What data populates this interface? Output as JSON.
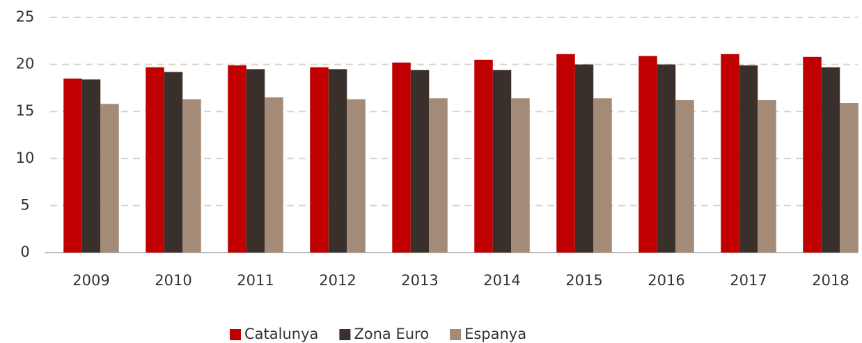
{
  "chart_data": {
    "type": "bar",
    "categories": [
      "2009",
      "2010",
      "2011",
      "2012",
      "2013",
      "2014",
      "2015",
      "2016",
      "2017",
      "2018"
    ],
    "series": [
      {
        "name": "Catalunya",
        "color": "#c00000",
        "values": [
          18.5,
          19.7,
          19.9,
          19.7,
          20.2,
          20.5,
          21.1,
          20.9,
          21.1,
          20.8
        ]
      },
      {
        "name": "Zona Euro",
        "color": "#3a302b",
        "values": [
          18.4,
          19.2,
          19.5,
          19.5,
          19.4,
          19.4,
          20.0,
          20.0,
          19.9,
          19.7
        ]
      },
      {
        "name": "Espanya",
        "color": "#a38b78",
        "values": [
          15.8,
          16.3,
          16.5,
          16.3,
          16.4,
          16.4,
          16.4,
          16.2,
          16.2,
          15.9
        ]
      }
    ],
    "ylim": [
      0,
      25
    ],
    "yticks": [
      0,
      5,
      10,
      15,
      20,
      25
    ],
    "grid": true,
    "legend": "bottom"
  }
}
